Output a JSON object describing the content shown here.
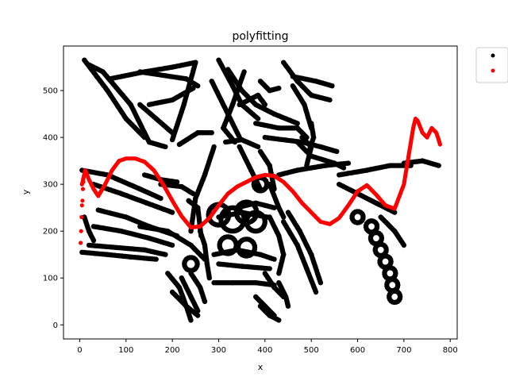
{
  "chart_data": {
    "type": "scatter",
    "title": "polyfitting",
    "xlabel": "x",
    "ylabel": "y",
    "xlim": [
      -35,
      815
    ],
    "ylim": [
      -30,
      595
    ],
    "xticks": [
      0,
      100,
      200,
      300,
      400,
      500,
      600,
      700,
      800
    ],
    "yticks": [
      0,
      100,
      200,
      300,
      400,
      500
    ],
    "grid": false,
    "legend": "outside-top-right",
    "colors": {
      "data": "#000000",
      "fit": "#ff0000"
    },
    "series": [
      {
        "marker": "dot",
        "color": "#000000",
        "strokes": [
          [
            [
              10,
              565
            ],
            [
              60,
              500
            ],
            [
              100,
              440
            ],
            [
              140,
              400
            ]
          ],
          [
            [
              20,
              555
            ],
            [
              50,
              540
            ],
            [
              110,
              470
            ],
            [
              150,
              390
            ],
            [
              185,
              380
            ]
          ],
          [
            [
              65,
              525
            ],
            [
              140,
              540
            ],
            [
              200,
              550
            ],
            [
              250,
              560
            ]
          ],
          [
            [
              130,
              540
            ],
            [
              230,
              525
            ],
            [
              255,
              510
            ]
          ],
          [
            [
              150,
              470
            ],
            [
              200,
              480
            ],
            [
              245,
              505
            ]
          ],
          [
            [
              130,
              470
            ],
            [
              165,
              440
            ],
            [
              200,
              410
            ]
          ],
          [
            [
              250,
              560
            ],
            [
              225,
              470
            ],
            [
              200,
              395
            ]
          ],
          [
            [
              215,
              385
            ],
            [
              255,
              410
            ],
            [
              285,
              410
            ]
          ],
          [
            [
              300,
              565
            ],
            [
              330,
              510
            ],
            [
              350,
              470
            ],
            [
              385,
              440
            ]
          ],
          [
            [
              320,
              545
            ],
            [
              350,
              500
            ],
            [
              380,
              470
            ]
          ],
          [
            [
              355,
              540
            ],
            [
              330,
              470
            ],
            [
              310,
              420
            ],
            [
              335,
              390
            ]
          ],
          [
            [
              285,
              520
            ],
            [
              320,
              450
            ],
            [
              345,
              400
            ]
          ],
          [
            [
              345,
              470
            ],
            [
              385,
              490
            ],
            [
              400,
              470
            ]
          ],
          [
            [
              390,
              520
            ],
            [
              410,
              500
            ],
            [
              430,
              505
            ]
          ],
          [
            [
              440,
              560
            ],
            [
              470,
              520
            ],
            [
              500,
              490
            ],
            [
              540,
              480
            ]
          ],
          [
            [
              460,
              530
            ],
            [
              510,
              520
            ],
            [
              545,
              510
            ]
          ],
          [
            [
              460,
              510
            ],
            [
              485,
              470
            ],
            [
              500,
              420
            ]
          ],
          [
            [
              380,
              470
            ],
            [
              420,
              450
            ],
            [
              470,
              430
            ]
          ],
          [
            [
              380,
              430
            ],
            [
              430,
              420
            ],
            [
              470,
              420
            ],
            [
              490,
              400
            ]
          ],
          [
            [
              400,
              400
            ],
            [
              480,
              390
            ],
            [
              520,
              380
            ],
            [
              555,
              370
            ]
          ],
          [
            [
              470,
              390
            ],
            [
              500,
              360
            ],
            [
              550,
              345
            ],
            [
              570,
              335
            ]
          ],
          [
            [
              430,
              320
            ],
            [
              470,
              330
            ],
            [
              530,
              340
            ],
            [
              580,
              345
            ]
          ],
          [
            [
              290,
              380
            ],
            [
              270,
              320
            ],
            [
              250,
              270
            ],
            [
              240,
              200
            ]
          ],
          [
            [
              345,
              380
            ],
            [
              370,
              330
            ],
            [
              390,
              290
            ]
          ],
          [
            [
              390,
              370
            ],
            [
              410,
              340
            ],
            [
              420,
              290
            ]
          ],
          [
            [
              315,
              390
            ],
            [
              350,
              395
            ],
            [
              385,
              380
            ]
          ],
          [
            [
              5,
              330
            ],
            [
              60,
              320
            ],
            [
              130,
              290
            ],
            [
              175,
              270
            ]
          ],
          [
            [
              30,
              300
            ],
            [
              90,
              280
            ],
            [
              145,
              260
            ],
            [
              200,
              240
            ]
          ],
          [
            [
              40,
              245
            ],
            [
              100,
              230
            ],
            [
              150,
              210
            ],
            [
              210,
              190
            ]
          ],
          [
            [
              30,
              210
            ],
            [
              90,
              200
            ],
            [
              150,
              185
            ],
            [
              200,
              170
            ]
          ],
          [
            [
              20,
              170
            ],
            [
              80,
              165
            ],
            [
              140,
              160
            ],
            [
              185,
              150
            ]
          ],
          [
            [
              5,
              155
            ],
            [
              60,
              150
            ],
            [
              110,
              145
            ],
            [
              165,
              140
            ]
          ],
          [
            [
              10,
              230
            ],
            [
              20,
              200
            ],
            [
              30,
              180
            ]
          ],
          [
            [
              130,
              210
            ],
            [
              190,
              200
            ],
            [
              240,
              170
            ],
            [
              270,
              140
            ]
          ],
          [
            [
              175,
              300
            ],
            [
              220,
              295
            ],
            [
              245,
              280
            ]
          ],
          [
            [
              140,
              320
            ],
            [
              175,
              310
            ],
            [
              210,
              305
            ]
          ],
          [
            [
              235,
              265
            ],
            [
              255,
              250
            ],
            [
              262,
              190
            ]
          ],
          [
            [
              260,
              200
            ],
            [
              270,
              170
            ],
            [
              275,
              130
            ],
            [
              280,
              100
            ]
          ],
          [
            [
              290,
              150
            ],
            [
              340,
              160
            ],
            [
              390,
              150
            ],
            [
              420,
              140
            ]
          ],
          [
            [
              300,
              130
            ],
            [
              350,
              125
            ],
            [
              410,
              120
            ]
          ],
          [
            [
              290,
              90
            ],
            [
              330,
              90
            ],
            [
              380,
              90
            ],
            [
              420,
              85
            ]
          ],
          [
            [
              300,
              230
            ],
            [
              350,
              240
            ],
            [
              405,
              230
            ]
          ],
          [
            [
              340,
              250
            ],
            [
              380,
              260
            ],
            [
              420,
              250
            ]
          ],
          [
            [
              410,
              230
            ],
            [
              430,
              190
            ],
            [
              440,
              150
            ],
            [
              430,
              110
            ]
          ],
          [
            [
              440,
              220
            ],
            [
              470,
              170
            ],
            [
              490,
              120
            ],
            [
              510,
              70
            ]
          ],
          [
            [
              450,
              240
            ],
            [
              475,
              200
            ],
            [
              500,
              150
            ],
            [
              520,
              90
            ]
          ],
          [
            [
              190,
              110
            ],
            [
              215,
              80
            ],
            [
              230,
              40
            ],
            [
              240,
              10
            ]
          ],
          [
            [
              220,
              100
            ],
            [
              240,
              60
            ],
            [
              255,
              30
            ]
          ],
          [
            [
              200,
              70
            ],
            [
              230,
              40
            ],
            [
              255,
              20
            ]
          ],
          [
            [
              240,
              110
            ],
            [
              260,
              80
            ],
            [
              270,
              50
            ]
          ],
          [
            [
              390,
              40
            ],
            [
              410,
              20
            ],
            [
              430,
              10
            ]
          ],
          [
            [
              380,
              60
            ],
            [
              400,
              40
            ],
            [
              420,
              20
            ]
          ],
          [
            [
              400,
              110
            ],
            [
              420,
              80
            ],
            [
              440,
              60
            ]
          ],
          [
            [
              430,
              90
            ],
            [
              445,
              60
            ],
            [
              450,
              40
            ]
          ],
          [
            [
              410,
              300
            ],
            [
              430,
              250
            ],
            [
              440,
              230
            ]
          ],
          [
            [
              560,
              300
            ],
            [
              600,
              280
            ],
            [
              640,
              260
            ],
            [
              680,
              240
            ]
          ],
          [
            [
              650,
              230
            ],
            [
              680,
              200
            ],
            [
              700,
              170
            ]
          ],
          [
            [
              560,
              320
            ],
            [
              620,
              330
            ],
            [
              670,
              340
            ],
            [
              715,
              340
            ]
          ],
          [
            [
              700,
              345
            ],
            [
              740,
              350
            ],
            [
              775,
              340
            ]
          ],
          [
            [
              480,
              400
            ],
            [
              500,
              380
            ],
            [
              490,
              340
            ]
          ],
          [
            [
              500,
              430
            ],
            [
              505,
              400
            ],
            [
              495,
              370
            ]
          ]
        ],
        "loops": [
          [
            300,
            235,
            22
          ],
          [
            330,
            225,
            25
          ],
          [
            360,
            240,
            22
          ],
          [
            380,
            220,
            20
          ],
          [
            320,
            170,
            18
          ],
          [
            360,
            165,
            18
          ],
          [
            240,
            130,
            14
          ],
          [
            390,
            300,
            14
          ],
          [
            630,
            210,
            12
          ],
          [
            640,
            185,
            12
          ],
          [
            650,
            160,
            12
          ],
          [
            660,
            135,
            12
          ],
          [
            670,
            110,
            12
          ],
          [
            675,
            85,
            12
          ],
          [
            680,
            60,
            12
          ],
          [
            600,
            230,
            12
          ]
        ]
      },
      {
        "marker": "dot",
        "color": "#ff0000",
        "x": [
          5,
          12,
          20,
          30,
          40,
          55,
          70,
          85,
          100,
          120,
          140,
          160,
          180,
          200,
          220,
          240,
          260,
          280,
          300,
          320,
          340,
          360,
          380,
          400,
          420,
          440,
          460,
          480,
          500,
          520,
          540,
          560,
          580,
          600,
          620,
          640,
          660,
          680,
          700,
          710,
          720,
          725,
          730,
          740,
          750,
          760,
          770,
          775,
          778
        ],
        "y": [
          300,
          330,
          310,
          290,
          275,
          300,
          330,
          350,
          355,
          355,
          348,
          330,
          300,
          265,
          232,
          208,
          210,
          228,
          255,
          280,
          295,
          305,
          315,
          320,
          318,
          305,
          285,
          260,
          240,
          220,
          215,
          228,
          255,
          285,
          298,
          278,
          255,
          248,
          300,
          360,
          420,
          440,
          435,
          410,
          400,
          420,
          410,
          395,
          385
        ],
        "outliers": [
          [
            2,
            175
          ],
          [
            3,
            200
          ],
          [
            4,
            230
          ],
          [
            5,
            255
          ],
          [
            6,
            265
          ],
          [
            7,
            290
          ],
          [
            8,
            305
          ]
        ]
      }
    ]
  }
}
